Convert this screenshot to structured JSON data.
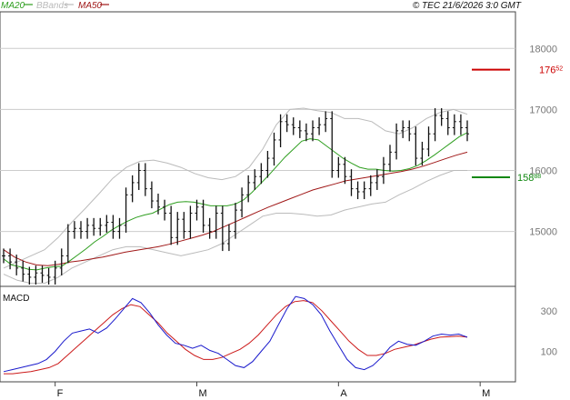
{
  "header": {
    "legend": [
      {
        "label": "MA20",
        "color": "#2e9e1f"
      },
      {
        "label": "BBands",
        "color": "#bbbbbb"
      },
      {
        "label": "MA50",
        "color": "#a01818"
      }
    ],
    "copyright": "© TEC 21/6/2026 3:0 GMT"
  },
  "colors": {
    "price_bars": "#111111",
    "ma20": "#2e9e1f",
    "ma50": "#a01818",
    "bbands": "#bbbbbb",
    "resistance": "#cc0000",
    "support": "#118811",
    "macd": "#1a1acc",
    "signal": "#cc1a1a",
    "grid": "#cccccc"
  },
  "chart_data": [
    {
      "type": "ohlc",
      "title": "",
      "ylim": [
        14100,
        18600
      ],
      "y_ticks": [
        "18000",
        "17000",
        "16000",
        "15000"
      ],
      "y_tick_values": [
        18000,
        17000,
        16000,
        15000
      ],
      "x_labels": [
        "F",
        "M",
        "A",
        "M",
        "J"
      ],
      "x_label_index": [
        8,
        30,
        52,
        74,
        95
      ],
      "levels": [
        {
          "name": "resistance",
          "value": 17652,
          "label_main": "176",
          "label_sup": "52"
        },
        {
          "name": "support",
          "value": 15888,
          "label_main": "158",
          "label_sup": "88"
        }
      ],
      "close": [
        14600,
        14500,
        14400,
        14300,
        14250,
        14320,
        14280,
        14250,
        14400,
        14600,
        15000,
        15050,
        15000,
        15100,
        15050,
        15100,
        15150,
        15000,
        15100,
        15600,
        15800,
        16000,
        15700,
        15500,
        15400,
        15300,
        14900,
        15200,
        15000,
        15300,
        15400,
        15100,
        15000,
        15300,
        14800,
        15000,
        15350,
        15600,
        15800,
        15900,
        16000,
        16200,
        16500,
        16800,
        16750,
        16700,
        16650,
        16600,
        16700,
        16750,
        16850,
        16000,
        16100,
        15900,
        15700,
        15650,
        15700,
        15800,
        15900,
        16100,
        16300,
        16650,
        16700,
        16600,
        16200,
        16350,
        16600,
        16900,
        16850,
        16700,
        16800,
        16700,
        16600
      ],
      "ma20": [
        14550,
        14450,
        14420,
        14380,
        14370,
        14400,
        14420,
        14430,
        14520,
        14620,
        14720,
        14830,
        14920,
        15020,
        15100,
        15170,
        15230,
        15270,
        15300,
        15370,
        15440,
        15480,
        15490,
        15480,
        15450,
        15420,
        15420,
        15420,
        15450,
        15520,
        15640,
        15780,
        15920,
        16070,
        16220,
        16350,
        16480,
        16520,
        16500,
        16400,
        16300,
        16200,
        16120,
        16050,
        16020,
        16020,
        16000,
        15990,
        16000,
        16030,
        16080,
        16160,
        16250,
        16350,
        16450,
        16550,
        16620
      ],
      "ma50": [
        14700,
        14580,
        14500,
        14450,
        14440,
        14460,
        14500,
        14520,
        14550,
        14580,
        14620,
        14660,
        14690,
        14720,
        14750,
        14790,
        14840,
        14890,
        14940,
        15000,
        15080,
        15160,
        15240,
        15320,
        15400,
        15470,
        15540,
        15610,
        15680,
        15730,
        15780,
        15830,
        15860,
        15890,
        15920,
        15950,
        15980,
        16020,
        16070,
        16130,
        16190,
        16250,
        16300
      ],
      "bb_upper": [
        14400,
        14500,
        14600,
        14700,
        14900,
        15150,
        15380,
        15620,
        15870,
        16050,
        16150,
        16170,
        16120,
        16050,
        15950,
        15880,
        15850,
        15900,
        16050,
        16350,
        16750,
        17000,
        17020,
        16980,
        16950,
        16850,
        16850,
        16800,
        16650,
        16600,
        16700,
        16850,
        16950,
        17000,
        16920
      ],
      "bb_lower": [
        14300,
        14200,
        14150,
        14150,
        14250,
        14400,
        14500,
        14600,
        14700,
        14750,
        14750,
        14700,
        14650,
        14600,
        14650,
        14700,
        14800,
        14950,
        15100,
        15250,
        15300,
        15300,
        15280,
        15250,
        15270,
        15350,
        15400,
        15450,
        15480,
        15600,
        15700,
        15820,
        15920,
        16000,
        16000
      ]
    },
    {
      "type": "line",
      "title": "MACD",
      "ylim": [
        -50,
        420
      ],
      "y_ticks": [
        "300",
        "100"
      ],
      "y_tick_values": [
        300,
        100
      ],
      "series": [
        {
          "name": "MACD",
          "values": [
            0,
            10,
            20,
            30,
            40,
            60,
            100,
            150,
            190,
            200,
            210,
            190,
            215,
            260,
            310,
            360,
            340,
            290,
            230,
            180,
            140,
            130,
            115,
            130,
            105,
            90,
            60,
            30,
            20,
            50,
            100,
            150,
            230,
            310,
            370,
            360,
            330,
            280,
            200,
            130,
            60,
            20,
            10,
            30,
            70,
            120,
            150,
            135,
            130,
            150,
            175,
            185,
            180,
            185,
            170
          ]
        },
        {
          "name": "Signal",
          "values": [
            -10,
            -10,
            -5,
            0,
            10,
            20,
            40,
            80,
            120,
            160,
            200,
            240,
            280,
            310,
            330,
            320,
            280,
            240,
            190,
            150,
            110,
            80,
            60,
            60,
            70,
            90,
            110,
            140,
            180,
            230,
            280,
            320,
            345,
            350,
            340,
            300,
            250,
            200,
            150,
            110,
            80,
            80,
            90,
            110,
            120,
            130,
            145,
            160,
            170,
            172,
            175,
            170
          ]
        }
      ]
    }
  ]
}
